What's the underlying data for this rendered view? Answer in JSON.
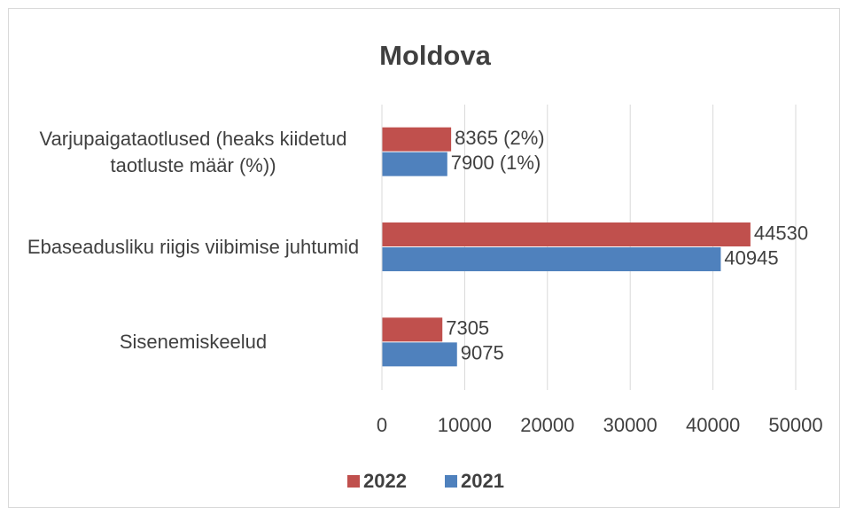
{
  "chart_data": {
    "type": "bar",
    "orientation": "horizontal",
    "title": "Moldova",
    "categories": [
      "Varjupaigataotlused (heaks kiidetud taotluste määr (%))",
      "Ebaseadusliku riigis viibimise juhtumid",
      "Sisenemiskeelud"
    ],
    "series": [
      {
        "name": "2022",
        "color": "#c0504d",
        "values": [
          8365,
          44530,
          7305
        ],
        "value_labels": [
          "8365 (2%)",
          "44530",
          "7305"
        ]
      },
      {
        "name": "2021",
        "color": "#4f81bd",
        "values": [
          7900,
          40945,
          9075
        ],
        "value_labels": [
          "7900 (1%)",
          "40945",
          "9075"
        ]
      }
    ],
    "xlim": [
      0,
      50000
    ],
    "xticks": [
      0,
      10000,
      20000,
      30000,
      40000,
      50000
    ],
    "grid": true,
    "legend": "bottom"
  }
}
